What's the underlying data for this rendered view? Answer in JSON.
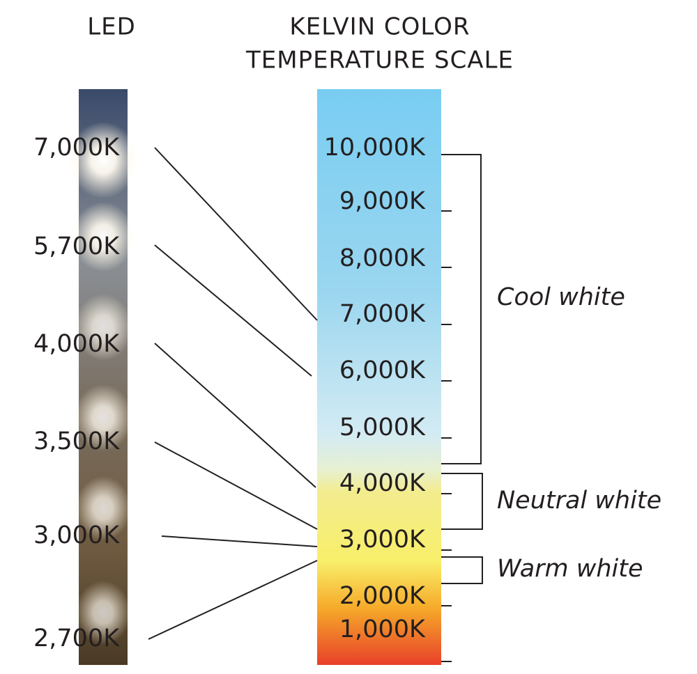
{
  "header": {
    "led_title": "LED",
    "scale_title": [
      "KELVIN COLOR",
      "TEMPERATURE SCALE"
    ]
  },
  "led_labels": [
    "7,000K",
    "5,700K",
    "4,000K",
    "3,500K",
    "3,000K",
    "2,700K"
  ],
  "scale_labels": [
    "10,000K",
    "9,000K",
    "8,000K",
    "7,000K",
    "6,000K",
    "5,000K",
    "4,000K",
    "3,000K",
    "2,000K",
    "1,000K"
  ],
  "ranges": [
    "Cool white",
    "Neutral white",
    "Warm white"
  ]
}
